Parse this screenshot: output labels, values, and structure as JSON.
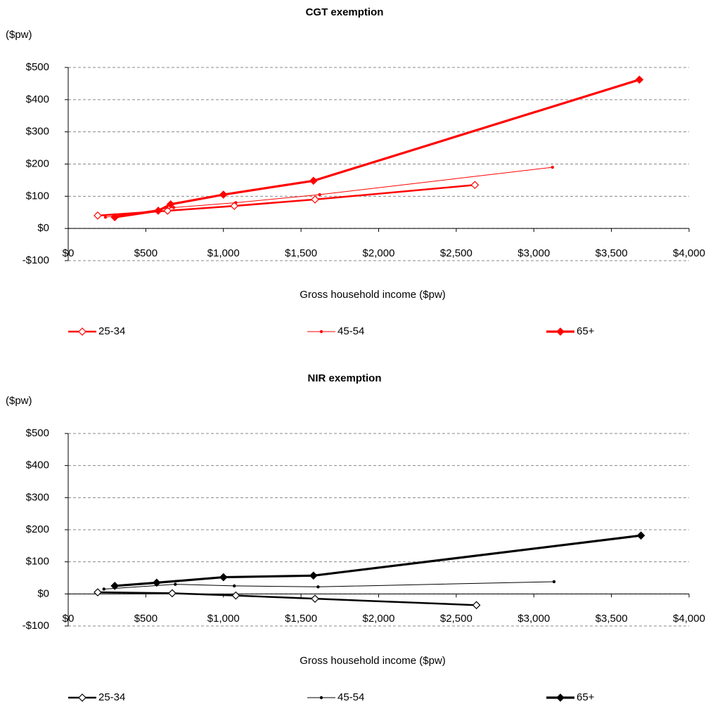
{
  "chart_data": [
    {
      "type": "line",
      "title": "CGT exemption",
      "y_unit": "($pw)",
      "x_label": "Gross household income ($pw)",
      "xlim": [
        0,
        4000
      ],
      "xticks": [
        {
          "value": 0,
          "label": "$0"
        },
        {
          "value": 500,
          "label": "$500"
        },
        {
          "value": 1000,
          "label": "$1,000"
        },
        {
          "value": 1500,
          "label": "$1,500"
        },
        {
          "value": 2000,
          "label": "$2,000"
        },
        {
          "value": 2500,
          "label": "$2,500"
        },
        {
          "value": 3000,
          "label": "$3,000"
        },
        {
          "value": 3500,
          "label": "$3,500"
        },
        {
          "value": 4000,
          "label": "$4,000"
        }
      ],
      "ylim": [
        -100,
        500
      ],
      "yticks": [
        {
          "value": -100,
          "label": "-$100"
        },
        {
          "value": 0,
          "label": "$0"
        },
        {
          "value": 100,
          "label": "$100"
        },
        {
          "value": 200,
          "label": "$200"
        },
        {
          "value": 300,
          "label": "$300"
        },
        {
          "value": 400,
          "label": "$400"
        },
        {
          "value": 500,
          "label": "$500"
        }
      ],
      "grid": true,
      "series": [
        {
          "name": "25-34",
          "color": "#ff0000",
          "marker": "hollow-diamond",
          "x": [
            190,
            640,
            1070,
            1590,
            2620
          ],
          "values": [
            40,
            55,
            70,
            90,
            135
          ]
        },
        {
          "name": "45-54",
          "color": "#ff0000",
          "marker": "dot",
          "x": [
            240,
            680,
            1080,
            1620,
            3120
          ],
          "values": [
            35,
            65,
            80,
            105,
            190
          ]
        },
        {
          "name": "65+",
          "color": "#ff0000",
          "marker": "diamond",
          "x": [
            300,
            580,
            660,
            1000,
            1580,
            3680
          ],
          "values": [
            35,
            55,
            75,
            105,
            148,
            462
          ]
        }
      ]
    },
    {
      "type": "line",
      "title": "NIR exemption",
      "y_unit": "($pw)",
      "x_label": "Gross household income ($pw)",
      "xlim": [
        0,
        4000
      ],
      "xticks": [
        {
          "value": 0,
          "label": "$0"
        },
        {
          "value": 500,
          "label": "$500"
        },
        {
          "value": 1000,
          "label": "$1,000"
        },
        {
          "value": 1500,
          "label": "$1,500"
        },
        {
          "value": 2000,
          "label": "$2,000"
        },
        {
          "value": 2500,
          "label": "$2,500"
        },
        {
          "value": 3000,
          "label": "$3,000"
        },
        {
          "value": 3500,
          "label": "$3,500"
        },
        {
          "value": 4000,
          "label": "$4,000"
        }
      ],
      "ylim": [
        -100,
        500
      ],
      "yticks": [
        {
          "value": -100,
          "label": "-$100"
        },
        {
          "value": 0,
          "label": "$0"
        },
        {
          "value": 100,
          "label": "$100"
        },
        {
          "value": 200,
          "label": "$200"
        },
        {
          "value": 300,
          "label": "$300"
        },
        {
          "value": 400,
          "label": "$400"
        },
        {
          "value": 500,
          "label": "$500"
        }
      ],
      "grid": true,
      "series": [
        {
          "name": "25-34",
          "color": "#000000",
          "marker": "hollow-diamond",
          "x": [
            190,
            670,
            1080,
            1590,
            2630
          ],
          "values": [
            5,
            2,
            -5,
            -15,
            -35
          ]
        },
        {
          "name": "45-54",
          "color": "#000000",
          "marker": "dot",
          "x": [
            230,
            690,
            1070,
            1610,
            3130
          ],
          "values": [
            15,
            30,
            25,
            22,
            38
          ]
        },
        {
          "name": "65+",
          "color": "#000000",
          "marker": "diamond",
          "x": [
            300,
            570,
            1000,
            1580,
            3690
          ],
          "values": [
            25,
            35,
            52,
            57,
            182
          ]
        }
      ]
    }
  ]
}
